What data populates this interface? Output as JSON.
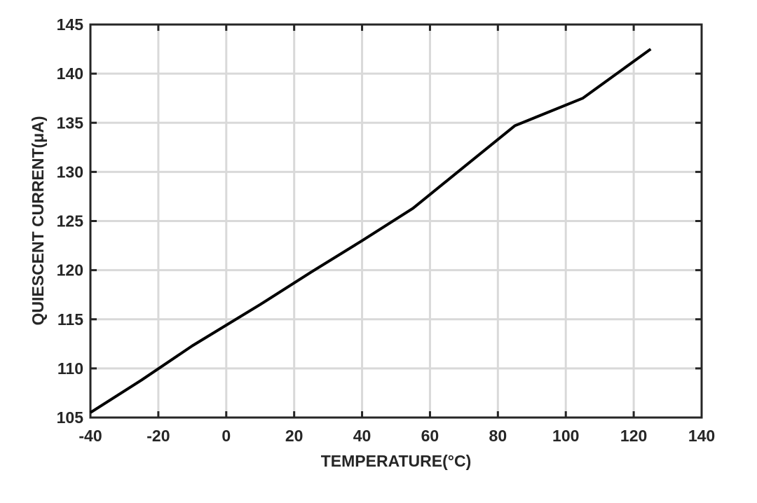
{
  "chart_data": {
    "type": "line",
    "title": "",
    "xlabel": "TEMPERATURE(°C)",
    "ylabel": "QUIESCENT CURRENT(μA)",
    "xlim": [
      -40,
      140
    ],
    "ylim": [
      105,
      145
    ],
    "xticks": [
      -40,
      -20,
      0,
      20,
      40,
      60,
      80,
      100,
      120,
      140
    ],
    "yticks": [
      105,
      110,
      115,
      120,
      125,
      130,
      135,
      140,
      145
    ],
    "grid": true,
    "legend": "none",
    "line_color": "#000000",
    "series": [
      {
        "x": [
          -40,
          -25,
          -10,
          10,
          25,
          40,
          55,
          70,
          85,
          105,
          125
        ],
        "y": [
          105.5,
          108.8,
          112.3,
          116.5,
          119.8,
          123.0,
          126.3,
          130.5,
          134.7,
          137.5,
          142.5
        ]
      }
    ]
  }
}
